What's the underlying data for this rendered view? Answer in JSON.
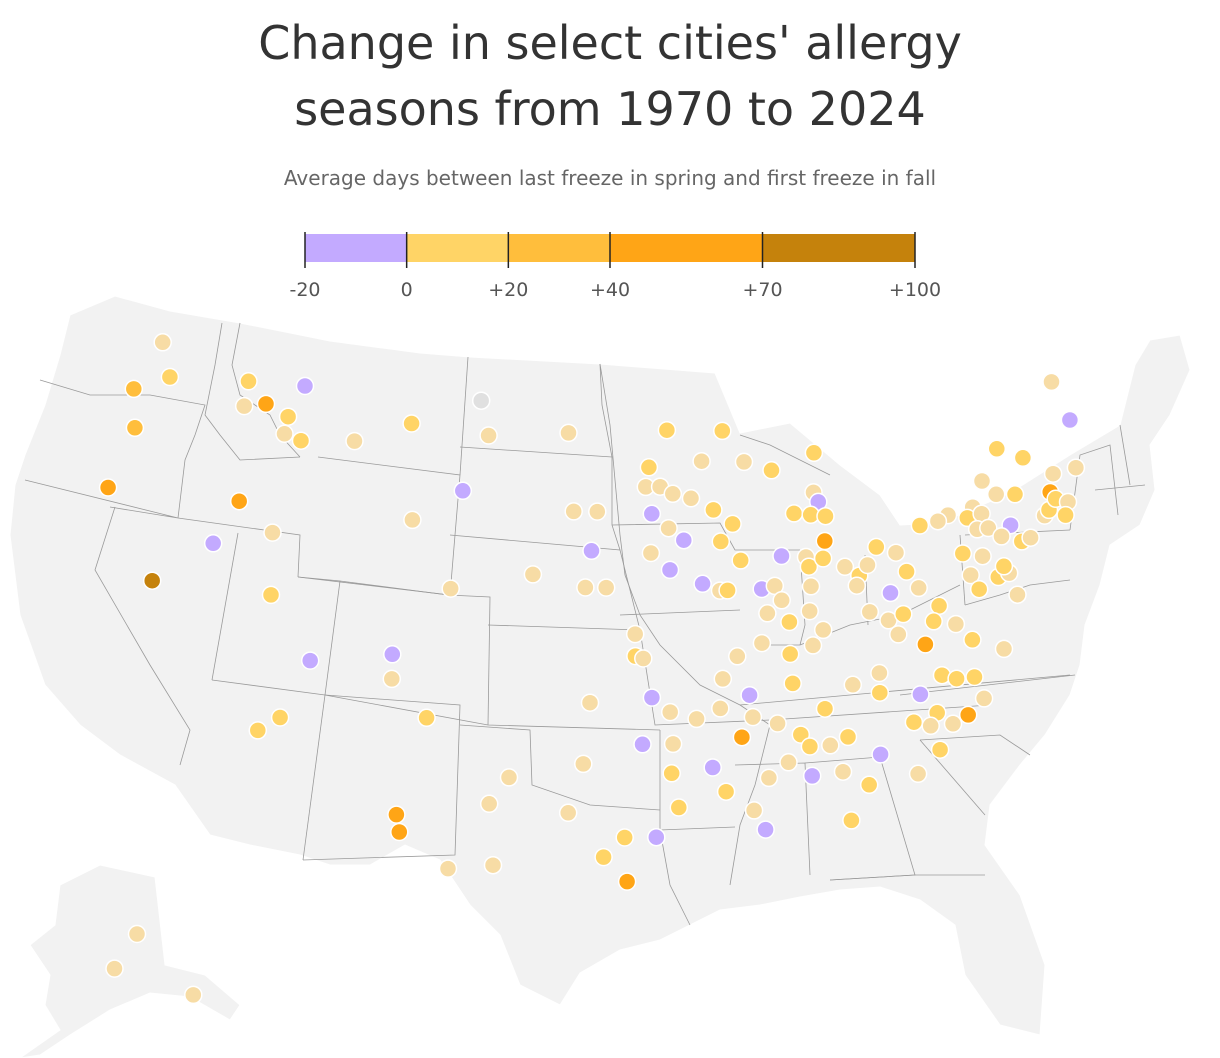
{
  "title_line1": "Change in select cities' allergy",
  "title_line2": "seasons from 1970 to 2024",
  "subtitle": "Average days between last freeze in spring and first freeze in fall",
  "legend": {
    "bins": [
      {
        "from": -20,
        "to": 0,
        "color": "#c3aaff"
      },
      {
        "from": 0,
        "to": 20,
        "color": "#ffd466"
      },
      {
        "from": 20,
        "to": 40,
        "color": "#ffbe3c"
      },
      {
        "from": 40,
        "to": 70,
        "color": "#ffa516"
      },
      {
        "from": 70,
        "to": 100,
        "color": "#c5820c"
      }
    ],
    "ticks": [
      {
        "value": -20,
        "label": "-20"
      },
      {
        "value": 0,
        "label": "0"
      },
      {
        "value": 20,
        "label": "+20"
      },
      {
        "value": 40,
        "label": "+40"
      },
      {
        "value": 70,
        "label": "+70"
      },
      {
        "value": 100,
        "label": "+100"
      }
    ]
  },
  "colors": {
    "land": "#f2f2f2",
    "borders": "#9a9a9a",
    "pale": "#f7dca5",
    "no_data": "#e0e0e0"
  },
  "cities": [
    {
      "lon": -122.8,
      "lat": 48.6,
      "category": "pale"
    },
    {
      "lon": -121.8,
      "lat": 47.3,
      "category": "0-20"
    },
    {
      "lon": -117.3,
      "lat": 47.6,
      "category": "0-20"
    },
    {
      "lon": -117.2,
      "lat": 46.6,
      "category": "pale"
    },
    {
      "lon": -123.6,
      "lat": 46.6,
      "category": "20-40"
    },
    {
      "lon": -122.9,
      "lat": 45.1,
      "category": "20-40"
    },
    {
      "lon": -123.4,
      "lat": 42.6,
      "category": "40-70"
    },
    {
      "lon": -116.0,
      "lat": 46.8,
      "category": "40-70"
    },
    {
      "lon": -114.0,
      "lat": 47.7,
      "category": "neg"
    },
    {
      "lon": -114.6,
      "lat": 46.4,
      "category": "0-20"
    },
    {
      "lon": -114.6,
      "lat": 45.7,
      "category": "pale"
    },
    {
      "lon": -113.6,
      "lat": 45.5,
      "category": "0-20"
    },
    {
      "lon": -110.6,
      "lat": 45.7,
      "category": "pale"
    },
    {
      "lon": -107.5,
      "lat": 46.6,
      "category": "0-20"
    },
    {
      "lon": -103.6,
      "lat": 47.7,
      "category": "nodata"
    },
    {
      "lon": -103.0,
      "lat": 46.3,
      "category": "pale"
    },
    {
      "lon": -98.4,
      "lat": 46.5,
      "category": "pale"
    },
    {
      "lon": -116.3,
      "lat": 42.8,
      "category": "40-70"
    },
    {
      "lon": -114.2,
      "lat": 41.7,
      "category": "pale"
    },
    {
      "lon": -117.2,
      "lat": 41.0,
      "category": "neg"
    },
    {
      "lon": -104.2,
      "lat": 44.0,
      "category": "neg"
    },
    {
      "lon": -106.8,
      "lat": 42.7,
      "category": "pale"
    },
    {
      "lon": -119.9,
      "lat": 39.2,
      "category": "70-100"
    },
    {
      "lon": -113.7,
      "lat": 39.2,
      "category": "0-20"
    },
    {
      "lon": -111.2,
      "lat": 36.7,
      "category": "neg"
    },
    {
      "lon": -107.1,
      "lat": 37.2,
      "category": "neg"
    },
    {
      "lon": -107.0,
      "lat": 36.2,
      "category": "pale"
    },
    {
      "lon": -104.4,
      "lat": 40.0,
      "category": "pale"
    },
    {
      "lon": -100.1,
      "lat": 40.7,
      "category": "pale"
    },
    {
      "lon": -98.0,
      "lat": 43.3,
      "category": "pale"
    },
    {
      "lon": -96.7,
      "lat": 43.3,
      "category": "pale"
    },
    {
      "lon": -97.0,
      "lat": 41.7,
      "category": "neg"
    },
    {
      "lon": -97.3,
      "lat": 40.2,
      "category": "pale"
    },
    {
      "lon": -96.2,
      "lat": 40.2,
      "category": "pale"
    },
    {
      "lon": -94.7,
      "lat": 38.3,
      "category": "pale"
    },
    {
      "lon": -94.7,
      "lat": 37.4,
      "category": "0-20"
    },
    {
      "lon": -94.3,
      "lat": 37.3,
      "category": "pale"
    },
    {
      "lon": -97.0,
      "lat": 35.5,
      "category": "pale"
    },
    {
      "lon": -93.9,
      "lat": 35.7,
      "category": "neg"
    },
    {
      "lon": -93.0,
      "lat": 35.1,
      "category": "pale"
    },
    {
      "lon": -94.4,
      "lat": 33.8,
      "category": "neg"
    },
    {
      "lon": -92.9,
      "lat": 33.8,
      "category": "pale"
    },
    {
      "lon": -93.0,
      "lat": 32.6,
      "category": "0-20"
    },
    {
      "lon": -97.3,
      "lat": 33.0,
      "category": "pale"
    },
    {
      "lon": -100.9,
      "lat": 32.4,
      "category": "pale"
    },
    {
      "lon": -101.8,
      "lat": 31.3,
      "category": "pale"
    },
    {
      "lon": -98.0,
      "lat": 31.0,
      "category": "pale"
    },
    {
      "lon": -95.3,
      "lat": 30.0,
      "category": "0-20"
    },
    {
      "lon": -93.8,
      "lat": 30.0,
      "category": "neg"
    },
    {
      "lon": -96.3,
      "lat": 29.2,
      "category": "0-20"
    },
    {
      "lon": -95.2,
      "lat": 28.2,
      "category": "40-70"
    },
    {
      "lon": -101.5,
      "lat": 28.8,
      "category": "pale"
    },
    {
      "lon": -103.6,
      "lat": 28.6,
      "category": "pale"
    },
    {
      "lon": -106.2,
      "lat": 30.7,
      "category": "40-70"
    },
    {
      "lon": -106.0,
      "lat": 30.0,
      "category": "40-70"
    },
    {
      "lon": -105.1,
      "lat": 34.7,
      "category": "0-20"
    },
    {
      "lon": -112.3,
      "lat": 34.3,
      "category": "0-20"
    },
    {
      "lon": -113.3,
      "lat": 33.7,
      "category": "0-20"
    },
    {
      "lon": -92.7,
      "lat": 46.6,
      "category": "0-20"
    },
    {
      "lon": -93.8,
      "lat": 45.1,
      "category": "0-20"
    },
    {
      "lon": -94.0,
      "lat": 44.3,
      "category": "pale"
    },
    {
      "lon": -93.2,
      "lat": 44.3,
      "category": "pale"
    },
    {
      "lon": -92.5,
      "lat": 44.0,
      "category": "pale"
    },
    {
      "lon": -93.7,
      "lat": 43.2,
      "category": "neg"
    },
    {
      "lon": -92.8,
      "lat": 42.6,
      "category": "pale"
    },
    {
      "lon": -92.0,
      "lat": 42.1,
      "category": "neg"
    },
    {
      "lon": -93.8,
      "lat": 41.6,
      "category": "pale"
    },
    {
      "lon": -92.8,
      "lat": 40.9,
      "category": "neg"
    },
    {
      "lon": -91.1,
      "lat": 40.3,
      "category": "neg"
    },
    {
      "lon": -89.5,
      "lat": 46.5,
      "category": "0-20"
    },
    {
      "lon": -90.8,
      "lat": 45.3,
      "category": "pale"
    },
    {
      "lon": -88.4,
      "lat": 45.2,
      "category": "pale"
    },
    {
      "lon": -91.5,
      "lat": 43.8,
      "category": "pale"
    },
    {
      "lon": -90.3,
      "lat": 43.3,
      "category": "0-20"
    },
    {
      "lon": -89.3,
      "lat": 42.7,
      "category": "0-20"
    },
    {
      "lon": -90.0,
      "lat": 42.0,
      "category": "0-20"
    },
    {
      "lon": -89.0,
      "lat": 41.2,
      "category": "0-20"
    },
    {
      "lon": -90.2,
      "lat": 40.0,
      "category": "pale"
    },
    {
      "lon": -89.8,
      "lat": 40.0,
      "category": "0-20"
    },
    {
      "lon": -88.0,
      "lat": 40.0,
      "category": "neg"
    },
    {
      "lon": -86.8,
      "lat": 41.3,
      "category": "neg"
    },
    {
      "lon": -87.3,
      "lat": 40.1,
      "category": "pale"
    },
    {
      "lon": -87.0,
      "lat": 39.5,
      "category": "pale"
    },
    {
      "lon": -87.8,
      "lat": 39.0,
      "category": "pale"
    },
    {
      "lon": -86.9,
      "lat": 44.8,
      "category": "0-20"
    },
    {
      "lon": -84.4,
      "lat": 45.4,
      "category": "0-20"
    },
    {
      "lon": -84.7,
      "lat": 43.8,
      "category": "pale"
    },
    {
      "lon": -84.5,
      "lat": 43.4,
      "category": "neg"
    },
    {
      "lon": -85.9,
      "lat": 43.0,
      "category": "0-20"
    },
    {
      "lon": -85.0,
      "lat": 42.9,
      "category": "0-20"
    },
    {
      "lon": -84.2,
      "lat": 42.8,
      "category": "0-20"
    },
    {
      "lon": -84.4,
      "lat": 41.8,
      "category": "40-70"
    },
    {
      "lon": -85.5,
      "lat": 41.2,
      "category": "pale"
    },
    {
      "lon": -85.4,
      "lat": 40.8,
      "category": "0-20"
    },
    {
      "lon": -85.4,
      "lat": 40.0,
      "category": "pale"
    },
    {
      "lon": -85.6,
      "lat": 39.0,
      "category": "pale"
    },
    {
      "lon": -86.7,
      "lat": 38.6,
      "category": "0-20"
    },
    {
      "lon": -86.8,
      "lat": 37.3,
      "category": "0-20"
    },
    {
      "lon": -85.6,
      "lat": 37.6,
      "category": "pale"
    },
    {
      "lon": -85.0,
      "lat": 38.2,
      "category": "pale"
    },
    {
      "lon": -88.2,
      "lat": 37.8,
      "category": "pale"
    },
    {
      "lon": -89.5,
      "lat": 37.3,
      "category": "pale"
    },
    {
      "lon": -90.3,
      "lat": 36.4,
      "category": "pale"
    },
    {
      "lon": -89.0,
      "lat": 35.7,
      "category": "neg"
    },
    {
      "lon": -88.9,
      "lat": 34.8,
      "category": "pale"
    },
    {
      "lon": -84.6,
      "lat": 41.1,
      "category": "0-20"
    },
    {
      "lon": -83.5,
      "lat": 40.7,
      "category": "pale"
    },
    {
      "lon": -82.8,
      "lat": 40.3,
      "category": "0-20"
    },
    {
      "lon": -82.3,
      "lat": 40.7,
      "category": "pale"
    },
    {
      "lon": -83.0,
      "lat": 39.9,
      "category": "pale"
    },
    {
      "lon": -81.7,
      "lat": 41.4,
      "category": "0-20"
    },
    {
      "lon": -80.7,
      "lat": 41.1,
      "category": "pale"
    },
    {
      "lon": -80.3,
      "lat": 40.3,
      "category": "0-20"
    },
    {
      "lon": -81.3,
      "lat": 39.5,
      "category": "neg"
    },
    {
      "lon": -82.5,
      "lat": 38.8,
      "category": "pale"
    },
    {
      "lon": -81.6,
      "lat": 38.4,
      "category": "pale"
    },
    {
      "lon": -80.8,
      "lat": 38.6,
      "category": "0-20"
    },
    {
      "lon": -79.8,
      "lat": 39.6,
      "category": "pale"
    },
    {
      "lon": -81.2,
      "lat": 37.8,
      "category": "pale"
    },
    {
      "lon": -79.9,
      "lat": 37.3,
      "category": "40-70"
    },
    {
      "lon": -78.2,
      "lat": 38.0,
      "category": "pale"
    },
    {
      "lon": -78.9,
      "lat": 38.8,
      "category": "0-20"
    },
    {
      "lon": -79.3,
      "lat": 38.2,
      "category": "0-20"
    },
    {
      "lon": -77.5,
      "lat": 37.3,
      "category": "0-20"
    },
    {
      "lon": -76.0,
      "lat": 36.8,
      "category": "pale"
    },
    {
      "lon": -79.3,
      "lat": 36.0,
      "category": "0-20"
    },
    {
      "lon": -78.6,
      "lat": 35.8,
      "category": "0-20"
    },
    {
      "lon": -77.7,
      "lat": 35.8,
      "category": "0-20"
    },
    {
      "lon": -80.5,
      "lat": 35.3,
      "category": "neg"
    },
    {
      "lon": -82.5,
      "lat": 35.5,
      "category": "0-20"
    },
    {
      "lon": -83.8,
      "lat": 35.9,
      "category": "pale"
    },
    {
      "lon": -82.4,
      "lat": 36.3,
      "category": "pale"
    },
    {
      "lon": -86.8,
      "lat": 36.1,
      "category": "0-20"
    },
    {
      "lon": -85.3,
      "lat": 35.0,
      "category": "0-20"
    },
    {
      "lon": -87.7,
      "lat": 34.5,
      "category": "pale"
    },
    {
      "lon": -86.6,
      "lat": 34.0,
      "category": "0-20"
    },
    {
      "lon": -86.2,
      "lat": 33.5,
      "category": "0-20"
    },
    {
      "lon": -85.2,
      "lat": 33.5,
      "category": "pale"
    },
    {
      "lon": -87.3,
      "lat": 32.9,
      "category": "pale"
    },
    {
      "lon": -86.2,
      "lat": 32.3,
      "category": "neg"
    },
    {
      "lon": -84.3,
      "lat": 33.8,
      "category": "0-20"
    },
    {
      "lon": -82.8,
      "lat": 33.0,
      "category": "neg"
    },
    {
      "lon": -84.7,
      "lat": 32.4,
      "category": "pale"
    },
    {
      "lon": -83.5,
      "lat": 31.8,
      "category": "0-20"
    },
    {
      "lon": -84.5,
      "lat": 30.4,
      "category": "0-20"
    },
    {
      "lon": -88.6,
      "lat": 30.2,
      "category": "neg"
    },
    {
      "lon": -89.1,
      "lat": 31.0,
      "category": "pale"
    },
    {
      "lon": -90.4,
      "lat": 31.8,
      "category": "0-20"
    },
    {
      "lon": -88.3,
      "lat": 32.3,
      "category": "pale"
    },
    {
      "lon": -91.0,
      "lat": 32.8,
      "category": "neg"
    },
    {
      "lon": -92.7,
      "lat": 31.2,
      "category": "0-20"
    },
    {
      "lon": -89.5,
      "lat": 34.0,
      "category": "40-70"
    },
    {
      "lon": -91.7,
      "lat": 34.8,
      "category": "pale"
    },
    {
      "lon": -90.5,
      "lat": 35.2,
      "category": "pale"
    },
    {
      "lon": -81.0,
      "lat": 34.2,
      "category": "0-20"
    },
    {
      "lon": -79.8,
      "lat": 34.5,
      "category": "0-20"
    },
    {
      "lon": -80.2,
      "lat": 34.0,
      "category": "pale"
    },
    {
      "lon": -79.1,
      "lat": 34.0,
      "category": "pale"
    },
    {
      "lon": -78.3,
      "lat": 34.3,
      "category": "40-70"
    },
    {
      "lon": -79.9,
      "lat": 33.0,
      "category": "0-20"
    },
    {
      "lon": -81.1,
      "lat": 32.1,
      "category": "pale"
    },
    {
      "lon": -77.4,
      "lat": 34.9,
      "category": "pale"
    },
    {
      "lon": -77.6,
      "lat": 42.4,
      "category": "pale"
    },
    {
      "lon": -76.2,
      "lat": 42.6,
      "category": "pale"
    },
    {
      "lon": -75.4,
      "lat": 43.6,
      "category": "pale"
    },
    {
      "lon": -74.2,
      "lat": 44.8,
      "category": "0-20"
    },
    {
      "lon": -74.8,
      "lat": 43.0,
      "category": "pale"
    },
    {
      "lon": -73.8,
      "lat": 42.9,
      "category": "0-20"
    },
    {
      "lon": -79.2,
      "lat": 42.1,
      "category": "0-20"
    },
    {
      "lon": -78.2,
      "lat": 42.2,
      "category": "pale"
    },
    {
      "lon": -76.6,
      "lat": 42.2,
      "category": "0-20"
    },
    {
      "lon": -75.8,
      "lat": 42.3,
      "category": "pale"
    },
    {
      "lon": -76.2,
      "lat": 41.7,
      "category": "pale"
    },
    {
      "lon": -75.6,
      "lat": 41.7,
      "category": "pale"
    },
    {
      "lon": -74.4,
      "lat": 41.7,
      "category": "neg"
    },
    {
      "lon": -75.0,
      "lat": 41.3,
      "category": "pale"
    },
    {
      "lon": -74.0,
      "lat": 41.0,
      "category": "0-20"
    },
    {
      "lon": -73.5,
      "lat": 41.1,
      "category": "pale"
    },
    {
      "lon": -72.5,
      "lat": 41.9,
      "category": "pale"
    },
    {
      "lon": -72.2,
      "lat": 42.1,
      "category": "0-20"
    },
    {
      "lon": -77.2,
      "lat": 40.8,
      "category": "0-20"
    },
    {
      "lon": -76.2,
      "lat": 40.6,
      "category": "pale"
    },
    {
      "lon": -77.0,
      "lat": 39.9,
      "category": "pale"
    },
    {
      "lon": -75.6,
      "lat": 39.7,
      "category": "0-20"
    },
    {
      "lon": -76.7,
      "lat": 39.3,
      "category": "0-20"
    },
    {
      "lon": -75.0,
      "lat": 39.8,
      "category": "pale"
    },
    {
      "lon": -75.2,
      "lat": 40.1,
      "category": "0-20"
    },
    {
      "lon": -74.8,
      "lat": 38.9,
      "category": "pale"
    },
    {
      "lon": -71.9,
      "lat": 42.8,
      "category": "40-70"
    },
    {
      "lon": -71.5,
      "lat": 43.5,
      "category": "pale"
    },
    {
      "lon": -71.7,
      "lat": 42.5,
      "category": "0-20"
    },
    {
      "lon": -71.1,
      "lat": 42.3,
      "category": "pale"
    },
    {
      "lon": -71.4,
      "lat": 41.8,
      "category": "0-20"
    },
    {
      "lon": -72.9,
      "lat": 44.3,
      "category": "0-20"
    },
    {
      "lon": -70.2,
      "lat": 47.1,
      "category": "pale"
    },
    {
      "lon": -69.8,
      "lat": 45.5,
      "category": "neg"
    },
    {
      "lon": -70.2,
      "lat": 43.6,
      "category": "pale"
    },
    {
      "lon": -151.5,
      "lat": 66.6,
      "category": "pale"
    },
    {
      "lon": -153.3,
      "lat": 63.3,
      "category": "pale"
    },
    {
      "lon": -147.0,
      "lat": 60.8,
      "category": "pale"
    }
  ]
}
